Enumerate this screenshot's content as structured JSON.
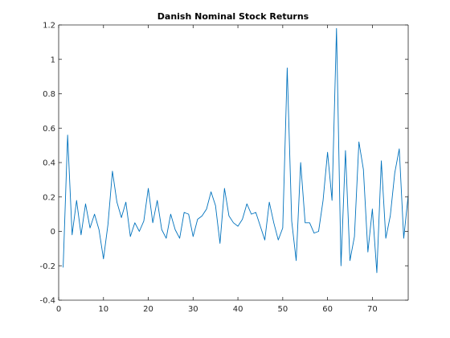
{
  "chart_data": {
    "type": "line",
    "title": "Danish Nominal Stock Returns",
    "xlabel": "",
    "ylabel": "",
    "xlim": [
      0,
      78
    ],
    "ylim": [
      -0.4,
      1.2
    ],
    "x_ticks": [
      0,
      10,
      20,
      30,
      40,
      50,
      60,
      70
    ],
    "y_ticks": [
      -0.4,
      -0.2,
      0,
      0.2,
      0.4,
      0.6,
      0.8,
      1,
      1.2
    ],
    "x_tick_labels": [
      "0",
      "10",
      "20",
      "30",
      "40",
      "50",
      "60",
      "70"
    ],
    "y_tick_labels": [
      "-0.4",
      "-0.2",
      "0",
      "0.2",
      "0.4",
      "0.6",
      "0.8",
      "1",
      "1.2"
    ],
    "grid": false,
    "box": true,
    "series": [
      {
        "color": "#0072bd",
        "x": [
          1,
          2,
          3,
          4,
          5,
          6,
          7,
          8,
          9,
          10,
          11,
          12,
          13,
          14,
          15,
          16,
          17,
          18,
          19,
          20,
          21,
          22,
          23,
          24,
          25,
          26,
          27,
          28,
          29,
          30,
          31,
          32,
          33,
          34,
          35,
          36,
          37,
          38,
          39,
          40,
          41,
          42,
          43,
          44,
          45,
          46,
          47,
          48,
          49,
          50,
          51,
          52,
          53,
          54,
          55,
          56,
          57,
          58,
          59,
          60,
          61,
          62,
          63,
          64,
          65,
          66,
          67,
          68,
          69,
          70,
          71,
          72,
          73,
          74,
          75,
          76,
          77,
          78
        ],
        "y": [
          -0.21,
          0.56,
          -0.02,
          0.18,
          -0.02,
          0.16,
          0.02,
          0.1,
          0.01,
          -0.16,
          0.04,
          0.35,
          0.17,
          0.08,
          0.17,
          -0.03,
          0.05,
          0.0,
          0.06,
          0.25,
          0.05,
          0.18,
          0.01,
          -0.04,
          0.1,
          0.01,
          -0.04,
          0.11,
          0.1,
          -0.03,
          0.07,
          0.09,
          0.13,
          0.23,
          0.15,
          -0.07,
          0.25,
          0.09,
          0.05,
          0.03,
          0.07,
          0.16,
          0.1,
          0.11,
          0.03,
          -0.05,
          0.17,
          0.05,
          -0.05,
          0.02,
          0.95,
          0.06,
          -0.17,
          0.4,
          0.05,
          0.05,
          -0.01,
          0.0,
          0.18,
          0.46,
          0.18,
          1.18,
          -0.2,
          0.47,
          -0.17,
          -0.03,
          0.52,
          0.36,
          -0.12,
          0.13,
          -0.24,
          0.41,
          -0.04,
          0.09,
          0.34,
          0.48,
          -0.04,
          0.21
        ]
      }
    ]
  }
}
